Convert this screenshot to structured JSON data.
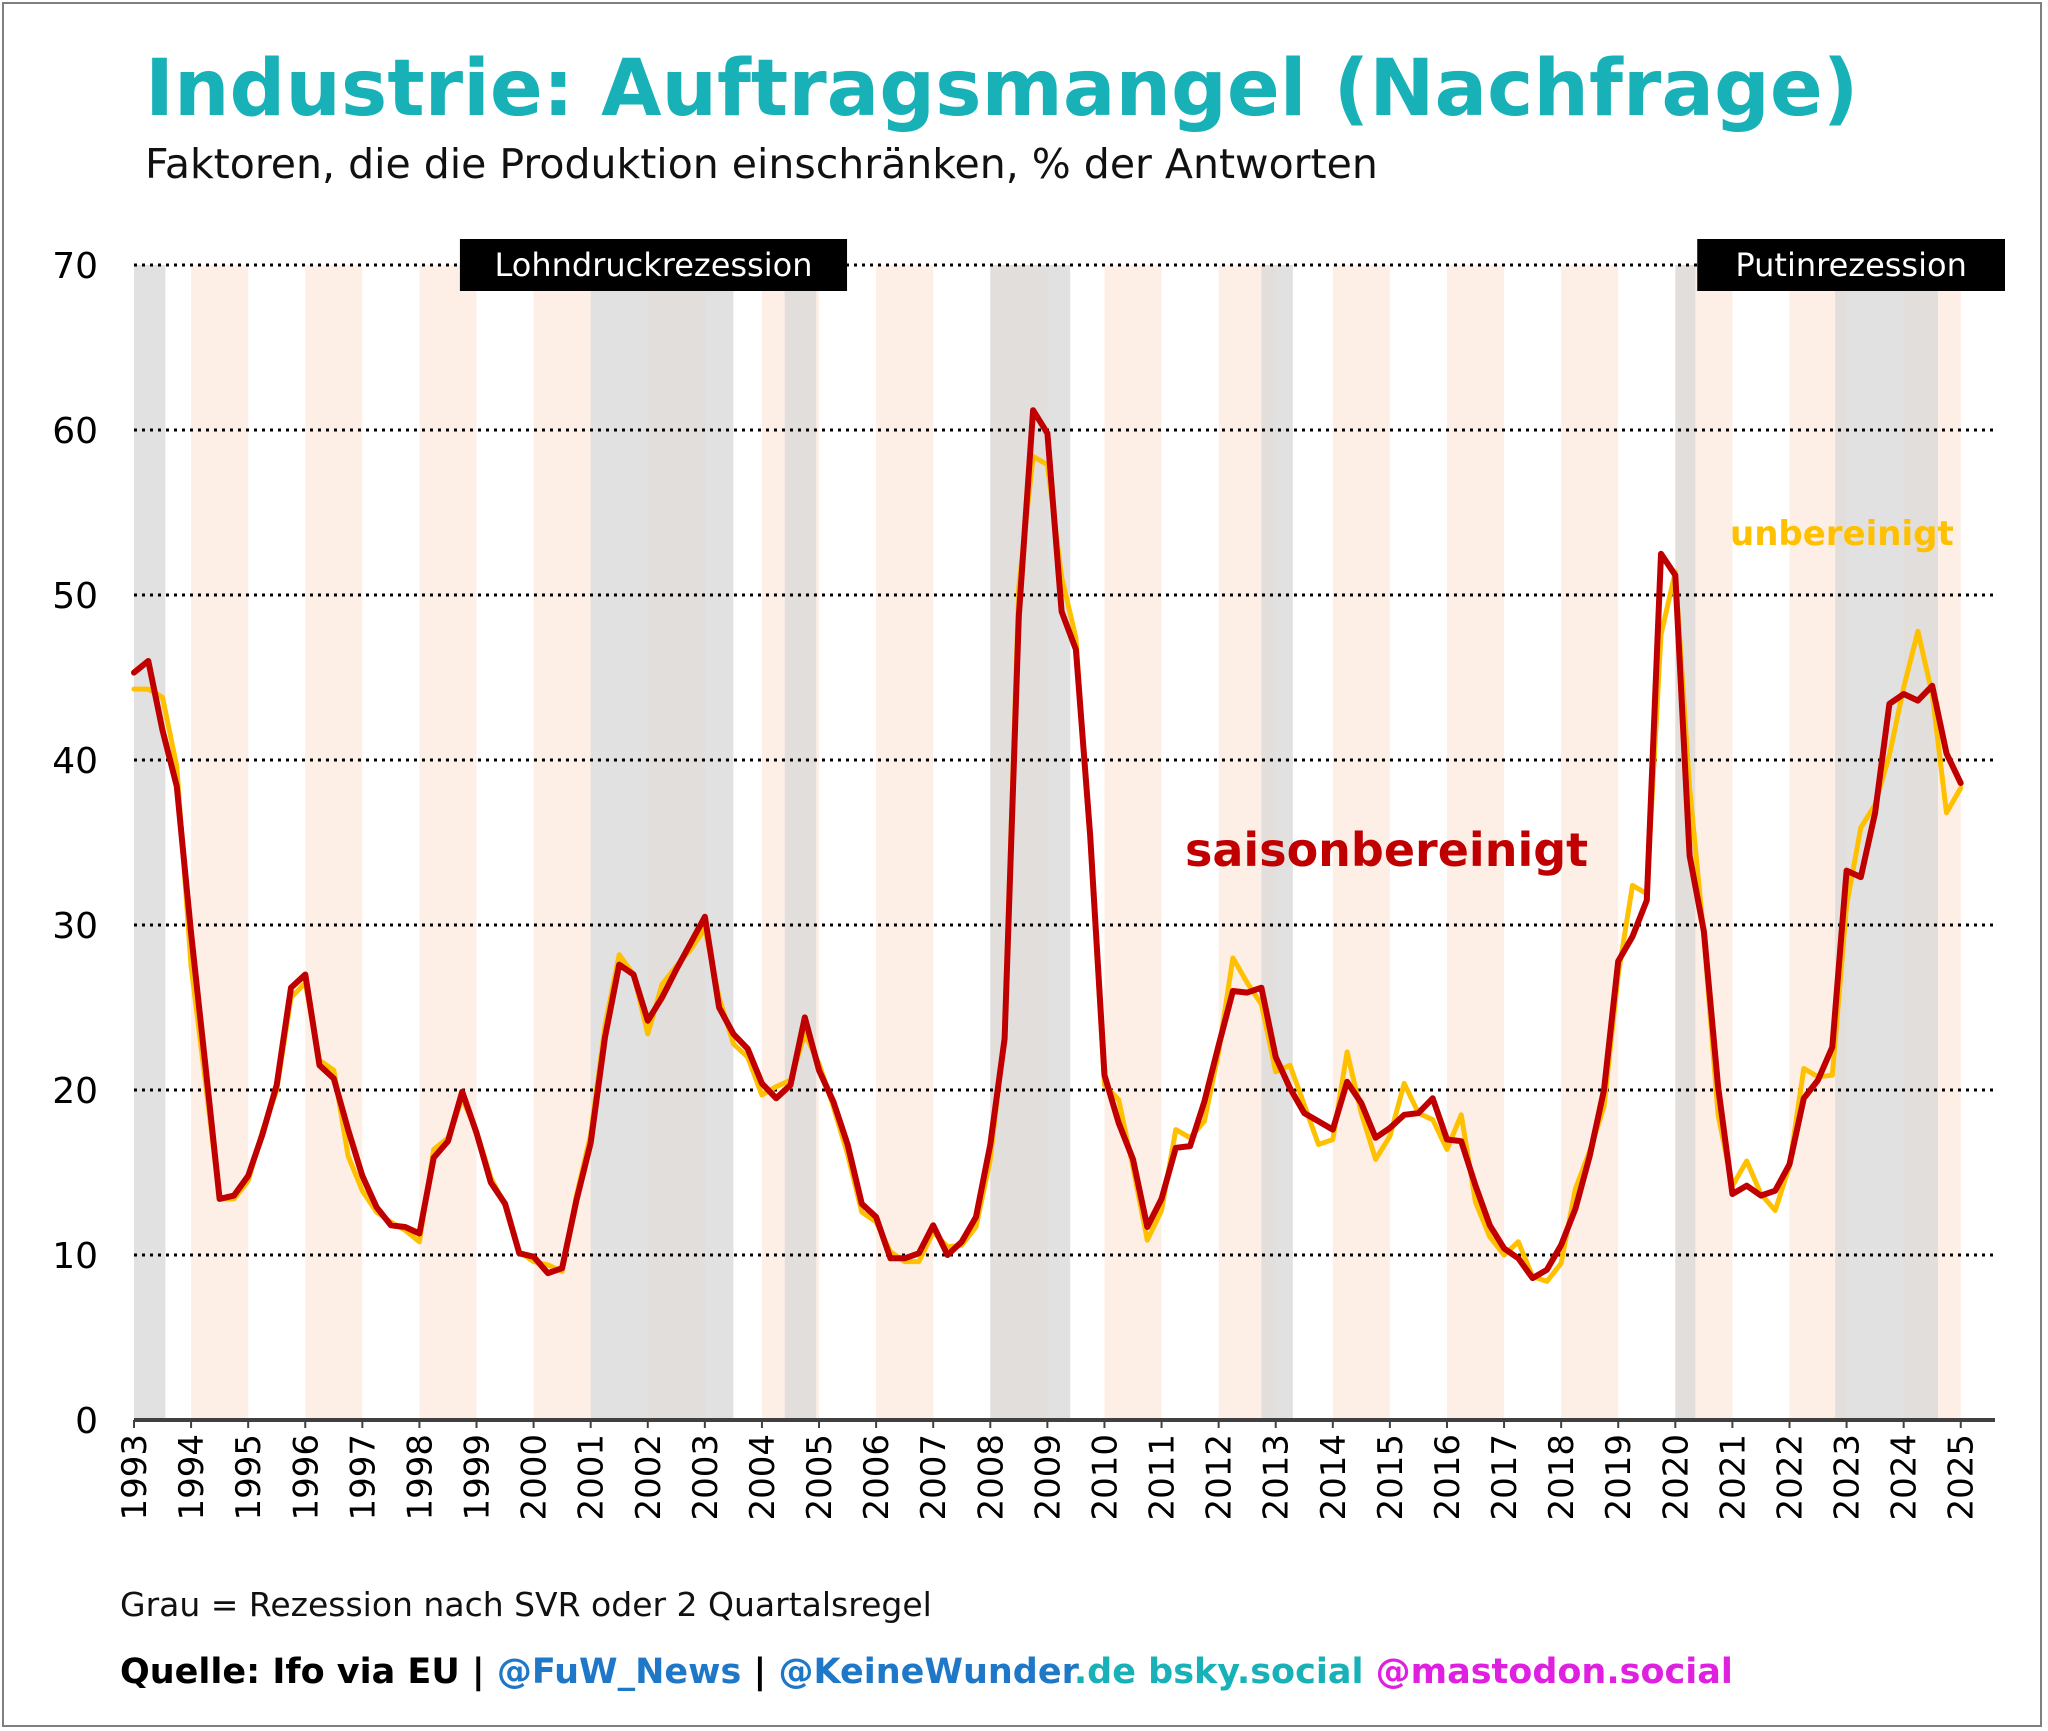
{
  "title": "Industrie: Auftragsmangel (Nachfrage)",
  "subtitle": "Faktoren, die die Produktion einschränken, % der Antworten",
  "note": "Grau = Rezession nach SVR oder 2 Quartalsregel",
  "source": {
    "quelle": "Quelle: Ifo via EU",
    "sep1": " | ",
    "fuw": "@FuW_News",
    "sep2": " | ",
    "keinewunder": "@KeineWunder",
    "de": ".de",
    "bsky": " bsky.social",
    "mastodon": " @mastodon.social"
  },
  "colors": {
    "title": "#17b1b7",
    "sa_line": "#c00000",
    "raw_line": "#ffc000",
    "recession": "#d9d9d9",
    "stripe": "#fdeee6",
    "fuw": "#1f77c7",
    "bsky": "#17b1b7",
    "mastodon": "#e020e0"
  },
  "chart_data": {
    "type": "line",
    "ylim": [
      0,
      70
    ],
    "yticks": [
      0,
      10,
      20,
      30,
      40,
      50,
      60,
      70
    ],
    "xlim": [
      1993.0,
      2025.6
    ],
    "xticks": [
      "1993",
      "1994",
      "1995",
      "1996",
      "1997",
      "1998",
      "1999",
      "2000",
      "2001",
      "2002",
      "2003",
      "2004",
      "2005",
      "2006",
      "2007",
      "2008",
      "2009",
      "2010",
      "2011",
      "2012",
      "2013",
      "2014",
      "2015",
      "2016",
      "2017",
      "2018",
      "2019",
      "2020",
      "2021",
      "2022",
      "2023",
      "2024",
      "2025"
    ],
    "grid": "horizontal dotted",
    "recessions": [
      [
        1993.0,
        1993.55
      ],
      [
        2001.0,
        2003.5
      ],
      [
        2004.4,
        2004.95
      ],
      [
        2008.0,
        2009.4
      ],
      [
        2012.75,
        2013.3
      ],
      [
        2020.0,
        2020.35
      ],
      [
        2022.8,
        2024.6
      ]
    ],
    "stripes": [
      [
        1994.0,
        1995.0
      ],
      [
        1996.0,
        1997.0
      ],
      [
        1998.0,
        1999.0
      ],
      [
        2000.0,
        2001.0
      ],
      [
        2002.0,
        2003.0
      ],
      [
        2004.0,
        2005.0
      ],
      [
        2006.0,
        2007.0
      ],
      [
        2008.0,
        2009.0
      ],
      [
        2010.0,
        2011.0
      ],
      [
        2012.0,
        2013.0
      ],
      [
        2014.0,
        2015.0
      ],
      [
        2016.0,
        2017.0
      ],
      [
        2018.0,
        2019.0
      ],
      [
        2020.0,
        2021.0
      ],
      [
        2022.0,
        2023.0
      ],
      [
        2024.0,
        2025.0
      ]
    ],
    "annotations": [
      {
        "text": "Lohndruckrezession",
        "x": 2002.1,
        "y": 70
      },
      {
        "text": "Putinrezession",
        "x": 2024.6,
        "y": 70
      }
    ],
    "series": [
      {
        "name": "saisonbereinigt",
        "x_start": 1993.0,
        "step": 0.25,
        "values": [
          45.3,
          46,
          41.8,
          38.4,
          29.5,
          21.5,
          13.4,
          13.6,
          14.8,
          17.3,
          20.3,
          26.2,
          27,
          21.5,
          20.7,
          17.6,
          14.8,
          12.9,
          11.8,
          11.7,
          11.3,
          15.9,
          16.9,
          19.9,
          17.4,
          14.4,
          13.1,
          10.1,
          9.9,
          8.9,
          9.2,
          13.3,
          16.8,
          23.2,
          27.6,
          27.0,
          24.2,
          25.6,
          27.3,
          28.9,
          30.5,
          25.0,
          23.4,
          22.5,
          20.4,
          19.5,
          20.3,
          24.4,
          21.2,
          19.3,
          16.7,
          13.1,
          12.3,
          9.8,
          9.8,
          10.1,
          11.8,
          10.0,
          10.8,
          12.3,
          16.7,
          23.1,
          48.7,
          61.2,
          59.8,
          49.0,
          46.7,
          35.4,
          20.9,
          18.0,
          15.8,
          11.7,
          13.4,
          16.5,
          16.6,
          19.3,
          22.7,
          26.0,
          25.9,
          26.2,
          22.0,
          20.1,
          18.6,
          18.1,
          17.6,
          20.5,
          19.2,
          17.1,
          17.7,
          18.5,
          18.6,
          19.5,
          17.0,
          16.9,
          14.2,
          11.8,
          10.4,
          9.8,
          8.6,
          9.1,
          10.6,
          12.8,
          16.0,
          20.0,
          27.8,
          29.3,
          31.5,
          52.5,
          51.2,
          34.2,
          29.6,
          20.2,
          13.7,
          14.2,
          13.6,
          13.9,
          15.5,
          19.5,
          20.6,
          22.6,
          33.3,
          32.9,
          36.8,
          43.4,
          44.0,
          43.6,
          44.5,
          40.4,
          38.6
        ]
      },
      {
        "name": "unbereinigt",
        "x_start": 1993.0,
        "step": 0.25,
        "values": [
          44.3,
          44.3,
          43.8,
          39.6,
          27.5,
          20.5,
          13.4,
          13.4,
          14.5,
          17.5,
          20.0,
          25.6,
          26.5,
          21.8,
          21.2,
          16.0,
          13.9,
          12.6,
          12.0,
          11.5,
          10.8,
          16.4,
          17.1,
          19.5,
          17.5,
          14.7,
          13.0,
          10.2,
          9.6,
          9.4,
          9.0,
          13.6,
          17.3,
          23.9,
          28.2,
          27.0,
          23.4,
          26.4,
          27.5,
          28.5,
          29.8,
          25.6,
          22.8,
          22.0,
          19.7,
          20.2,
          20.6,
          23.4,
          21.6,
          19.0,
          16.1,
          12.6,
          12.0,
          10.2,
          9.6,
          9.6,
          11.4,
          10.5,
          10.6,
          11.7,
          15.8,
          23.4,
          50.5,
          58.4,
          57.9,
          51.1,
          47.4,
          35.0,
          20.3,
          19.4,
          15.3,
          10.9,
          12.7,
          17.6,
          17.1,
          18.1,
          22.3,
          28.0,
          26.5,
          25.2,
          21.1,
          21.5,
          19.1,
          16.7,
          17.0,
          22.3,
          18.6,
          15.8,
          17.2,
          20.4,
          18.6,
          18.2,
          16.4,
          18.5,
          13.2,
          11.1,
          10.0,
          10.8,
          8.7,
          8.4,
          9.5,
          14.0,
          16.3,
          19.0,
          27.0,
          32.4,
          31.9,
          47.6,
          51.4,
          38.3,
          29.3,
          18.5,
          14.2,
          15.7,
          13.7,
          12.7,
          15.4,
          21.3,
          20.8,
          20.9,
          31.2,
          35.9,
          37.3,
          40.3,
          44.4,
          47.8,
          44.0,
          36.8,
          38.3
        ]
      }
    ]
  },
  "series_labels": {
    "sa": "saisonbereinigt",
    "raw": "unbereinigt"
  }
}
